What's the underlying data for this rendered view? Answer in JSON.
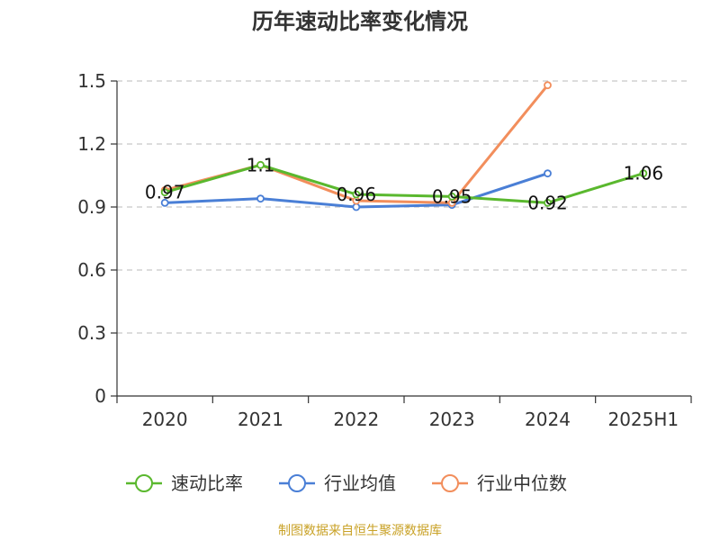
{
  "chart_data": {
    "type": "line",
    "title": "历年速动比率变化情况",
    "categories": [
      "2020",
      "2021",
      "2022",
      "2023",
      "2024",
      "2025H1"
    ],
    "y_ticks": [
      "0",
      "0.3",
      "0.6",
      "0.9",
      "1.2",
      "1.5"
    ],
    "ylim": [
      0,
      1.5
    ],
    "grid": true,
    "legend_position": "bottom",
    "series": [
      {
        "name": "速动比率",
        "color": "#5ab82e",
        "values": [
          0.97,
          1.1,
          0.96,
          0.95,
          0.92,
          1.06
        ],
        "labels": [
          "0.97",
          "1.1",
          "0.96",
          "0.95",
          "0.92",
          "1.06"
        ]
      },
      {
        "name": "行业均值",
        "color": "#4a7fd6",
        "values": [
          0.92,
          0.94,
          0.9,
          0.91,
          1.06,
          null
        ]
      },
      {
        "name": "行业中位数",
        "color": "#f28e5c",
        "values": [
          0.98,
          1.1,
          0.93,
          0.92,
          1.48,
          null
        ]
      }
    ],
    "source": "制图数据来自恒生聚源数据库"
  }
}
